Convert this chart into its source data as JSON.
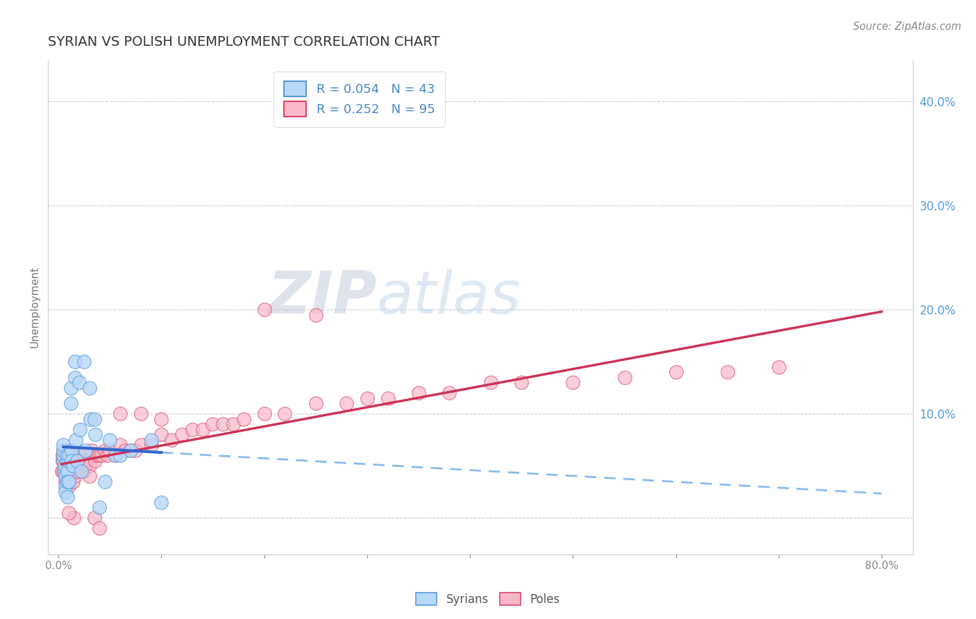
{
  "title": "SYRIAN VS POLISH UNEMPLOYMENT CORRELATION CHART",
  "source": "Source: ZipAtlas.com",
  "ylabel": "Unemployment",
  "ytick_vals": [
    0.0,
    0.1,
    0.2,
    0.3,
    0.4
  ],
  "ytick_labels": [
    "",
    "10.0%",
    "20.0%",
    "30.0%",
    "40.0%"
  ],
  "xtick_vals": [
    0.0,
    0.1,
    0.2,
    0.3,
    0.4,
    0.5,
    0.6,
    0.7,
    0.8
  ],
  "xtick_labels": [
    "0.0%",
    "",
    "",
    "",
    "",
    "",
    "",
    "",
    "80.0%"
  ],
  "xlim": [
    -0.01,
    0.83
  ],
  "ylim": [
    -0.035,
    0.44
  ],
  "legend_r_syrian": "R = 0.054",
  "legend_n_syrian": "N = 43",
  "legend_r_polish": "R = 0.252",
  "legend_n_polish": "N = 95",
  "syrian_fill_color": "#b8d8f8",
  "polish_fill_color": "#f8b8c8",
  "syrian_edge_color": "#5599dd",
  "polish_edge_color": "#dd4466",
  "syrian_line_color": "#3366cc",
  "polish_line_color": "#cc3355",
  "syrian_dash_color": "#88bbee",
  "background_color": "#ffffff",
  "watermark_zip": "ZIP",
  "watermark_atlas": "atlas",
  "grid_color": "#cccccc",
  "ytick_color": "#5599dd",
  "title_color": "#333333",
  "source_color": "#888888",
  "syrians_x": [
    0.005,
    0.005,
    0.005,
    0.005,
    0.006,
    0.006,
    0.007,
    0.007,
    0.007,
    0.008,
    0.008,
    0.009,
    0.009,
    0.009,
    0.01,
    0.01,
    0.01,
    0.012,
    0.012,
    0.013,
    0.013,
    0.014,
    0.016,
    0.016,
    0.017,
    0.018,
    0.02,
    0.021,
    0.022,
    0.025,
    0.026,
    0.03,
    0.031,
    0.035,
    0.036,
    0.04,
    0.045,
    0.05,
    0.055,
    0.06,
    0.07,
    0.09,
    0.1
  ],
  "syrians_y": [
    0.055,
    0.06,
    0.065,
    0.07,
    0.045,
    0.05,
    0.04,
    0.03,
    0.025,
    0.055,
    0.06,
    0.045,
    0.035,
    0.02,
    0.055,
    0.06,
    0.035,
    0.125,
    0.11,
    0.065,
    0.055,
    0.05,
    0.15,
    0.135,
    0.075,
    0.055,
    0.13,
    0.085,
    0.045,
    0.15,
    0.065,
    0.125,
    0.095,
    0.095,
    0.08,
    0.01,
    0.035,
    0.075,
    0.06,
    0.06,
    0.065,
    0.075,
    0.015
  ],
  "poles_x": [
    0.003,
    0.004,
    0.004,
    0.005,
    0.005,
    0.005,
    0.006,
    0.006,
    0.007,
    0.007,
    0.007,
    0.008,
    0.008,
    0.008,
    0.009,
    0.009,
    0.01,
    0.01,
    0.01,
    0.01,
    0.011,
    0.011,
    0.012,
    0.012,
    0.013,
    0.013,
    0.014,
    0.014,
    0.015,
    0.015,
    0.016,
    0.016,
    0.017,
    0.018,
    0.019,
    0.02,
    0.021,
    0.022,
    0.023,
    0.024,
    0.025,
    0.026,
    0.027,
    0.028,
    0.03,
    0.032,
    0.034,
    0.036,
    0.038,
    0.04,
    0.042,
    0.045,
    0.048,
    0.05,
    0.055,
    0.06,
    0.065,
    0.07,
    0.075,
    0.08,
    0.09,
    0.1,
    0.11,
    0.12,
    0.13,
    0.14,
    0.15,
    0.16,
    0.17,
    0.18,
    0.2,
    0.22,
    0.25,
    0.28,
    0.3,
    0.32,
    0.35,
    0.38,
    0.42,
    0.45,
    0.5,
    0.55,
    0.6,
    0.65,
    0.7,
    0.2,
    0.25,
    0.1,
    0.08,
    0.06,
    0.03,
    0.035,
    0.04,
    0.015,
    0.01
  ],
  "poles_y": [
    0.045,
    0.06,
    0.055,
    0.065,
    0.055,
    0.045,
    0.06,
    0.05,
    0.065,
    0.055,
    0.035,
    0.055,
    0.05,
    0.035,
    0.055,
    0.045,
    0.06,
    0.055,
    0.045,
    0.03,
    0.055,
    0.04,
    0.06,
    0.04,
    0.06,
    0.045,
    0.05,
    0.035,
    0.06,
    0.045,
    0.055,
    0.04,
    0.055,
    0.045,
    0.05,
    0.06,
    0.055,
    0.055,
    0.05,
    0.045,
    0.06,
    0.055,
    0.05,
    0.055,
    0.05,
    0.065,
    0.06,
    0.055,
    0.06,
    0.06,
    0.06,
    0.065,
    0.06,
    0.065,
    0.06,
    0.07,
    0.065,
    0.065,
    0.065,
    0.07,
    0.07,
    0.08,
    0.075,
    0.08,
    0.085,
    0.085,
    0.09,
    0.09,
    0.09,
    0.095,
    0.1,
    0.1,
    0.11,
    0.11,
    0.115,
    0.115,
    0.12,
    0.12,
    0.13,
    0.13,
    0.13,
    0.135,
    0.14,
    0.14,
    0.145,
    0.2,
    0.195,
    0.095,
    0.1,
    0.1,
    0.04,
    0.0,
    -0.01,
    0.0,
    0.005
  ]
}
